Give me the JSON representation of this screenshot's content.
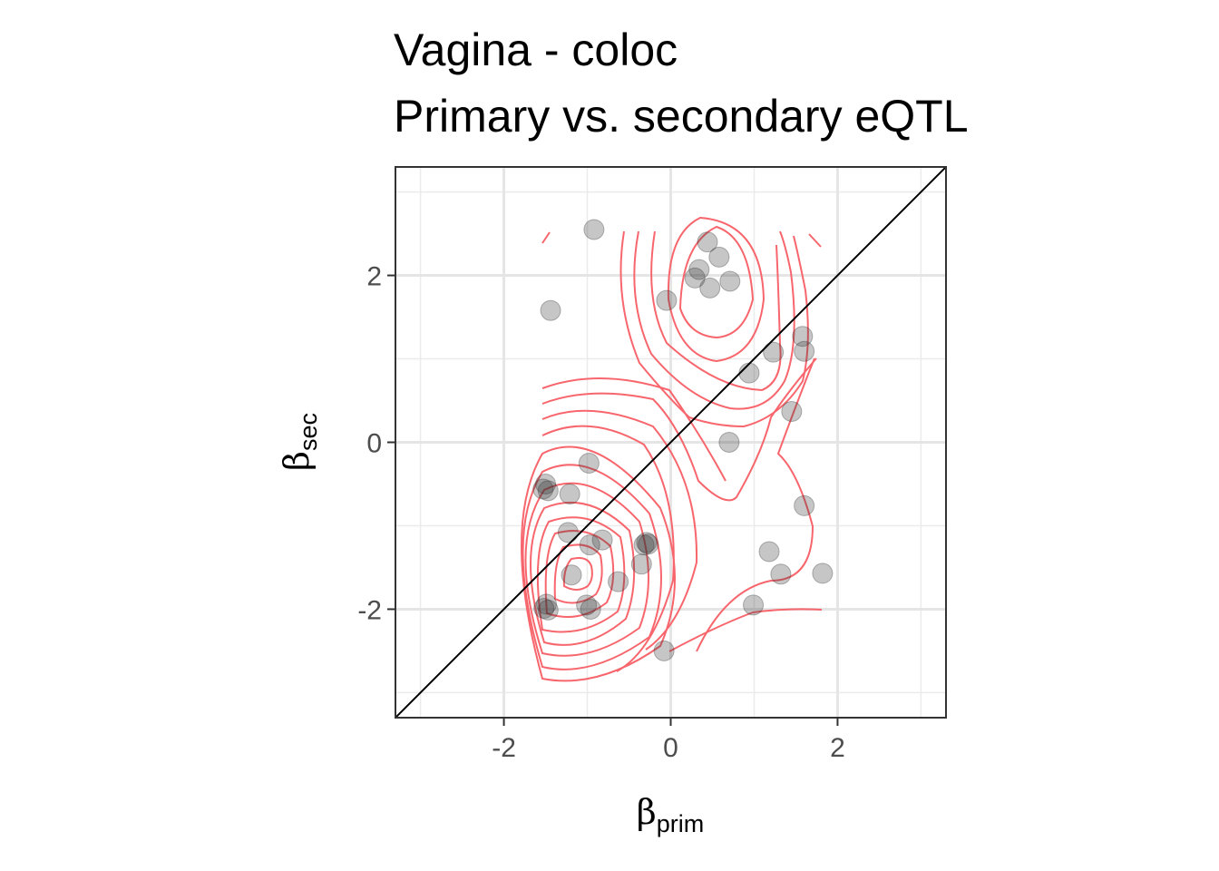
{
  "chart_data": {
    "type": "scatter",
    "title": [
      "Vagina - coloc",
      "Primary vs. secondary eQTL"
    ],
    "xlabel": {
      "symbol": "β",
      "subscript": "prim"
    },
    "ylabel": {
      "symbol": "β",
      "subscript": "sec"
    },
    "xlim": [
      -3.3,
      3.3
    ],
    "ylim": [
      -3.3,
      3.3
    ],
    "x_ticks": [
      -2,
      0,
      2
    ],
    "y_ticks": [
      -2,
      0,
      2
    ],
    "x_tick_labels": [
      "-2",
      "0",
      "2"
    ],
    "y_tick_labels": [
      "-2",
      "0",
      "2"
    ],
    "grid": true,
    "reference_line": "y = x",
    "point_color": "#333333",
    "contour_color": "#f8666d",
    "points": [
      {
        "x": -0.92,
        "y": 2.55
      },
      {
        "x": -1.44,
        "y": 1.58
      },
      {
        "x": 0.44,
        "y": 2.4
      },
      {
        "x": 0.58,
        "y": 2.22
      },
      {
        "x": 0.34,
        "y": 2.07
      },
      {
        "x": 0.29,
        "y": 1.97
      },
      {
        "x": 0.47,
        "y": 1.85
      },
      {
        "x": 0.71,
        "y": 1.93
      },
      {
        "x": -0.05,
        "y": 1.7
      },
      {
        "x": 1.58,
        "y": 1.27
      },
      {
        "x": 1.23,
        "y": 1.08
      },
      {
        "x": 1.6,
        "y": 1.09
      },
      {
        "x": 0.94,
        "y": 0.83
      },
      {
        "x": 1.45,
        "y": 0.37
      },
      {
        "x": 0.7,
        "y": 0.0
      },
      {
        "x": -0.98,
        "y": -0.25
      },
      {
        "x": -1.5,
        "y": -0.5
      },
      {
        "x": -1.53,
        "y": -0.56
      },
      {
        "x": -1.47,
        "y": -0.58
      },
      {
        "x": -1.21,
        "y": -0.62
      },
      {
        "x": 1.6,
        "y": -0.76
      },
      {
        "x": -1.23,
        "y": -1.08
      },
      {
        "x": -0.82,
        "y": -1.17
      },
      {
        "x": -0.97,
        "y": -1.23
      },
      {
        "x": -0.29,
        "y": -1.2
      },
      {
        "x": -0.27,
        "y": -1.22
      },
      {
        "x": -0.32,
        "y": -1.23
      },
      {
        "x": 1.18,
        "y": -1.31
      },
      {
        "x": -0.35,
        "y": -1.46
      },
      {
        "x": 1.32,
        "y": -1.58
      },
      {
        "x": 1.82,
        "y": -1.57
      },
      {
        "x": -1.19,
        "y": -1.59
      },
      {
        "x": -0.63,
        "y": -1.67
      },
      {
        "x": -1.01,
        "y": -1.95
      },
      {
        "x": 0.99,
        "y": -1.95
      },
      {
        "x": -0.96,
        "y": -2.0
      },
      {
        "x": -1.49,
        "y": -1.94
      },
      {
        "x": -1.52,
        "y": -1.99
      },
      {
        "x": -1.47,
        "y": -2.01
      },
      {
        "x": -0.08,
        "y": -2.5
      }
    ]
  }
}
